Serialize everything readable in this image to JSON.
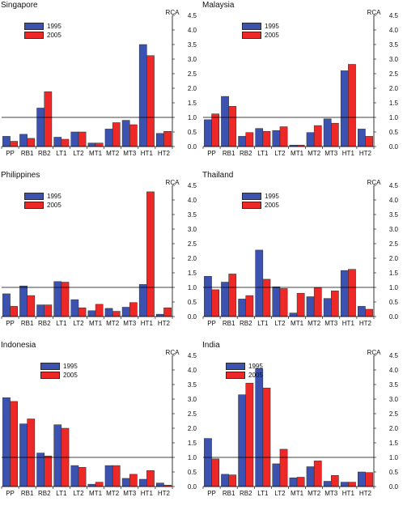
{
  "colors": {
    "s1995": "#3c52b0",
    "s2005": "#ee2727",
    "bar_edge": "#2a2a2a",
    "axis": "#000000"
  },
  "chart_data": [
    {
      "type": "bar",
      "title": "Singapore",
      "ylabel": "RCA",
      "ylim": [
        0,
        4.5
      ],
      "reference_line": 1.0,
      "y_ticks": [
        "0.0",
        "0.5",
        "1.0",
        "1.5",
        "2.0",
        "2.5",
        "3.0",
        "3.5",
        "4.0",
        "4.5"
      ],
      "categories": [
        "PP",
        "RB1",
        "RB2",
        "LT1",
        "LT2",
        "MT1",
        "MT2",
        "MT3",
        "HT1",
        "HT2"
      ],
      "legend_position": "upper-left",
      "series": [
        {
          "name": "1995",
          "values": [
            0.35,
            0.42,
            1.32,
            0.32,
            0.5,
            0.12,
            0.6,
            0.9,
            3.5,
            0.45
          ]
        },
        {
          "name": "2005",
          "values": [
            0.18,
            0.28,
            1.88,
            0.25,
            0.5,
            0.12,
            0.82,
            0.75,
            3.12,
            0.52
          ]
        }
      ]
    },
    {
      "type": "bar",
      "title": "Malaysia",
      "ylabel": "RCA",
      "ylim": [
        0,
        4.5
      ],
      "reference_line": 1.0,
      "y_ticks": [
        "0.0",
        "0.5",
        "1.0",
        "1.5",
        "2.0",
        "2.5",
        "3.0",
        "3.5",
        "4.0",
        "4.5"
      ],
      "categories": [
        "PP",
        "RB1",
        "RB2",
        "LT1",
        "LT2",
        "MT1",
        "MT2",
        "MT3",
        "HT1",
        "HT2"
      ],
      "legend_position": "upper-center",
      "series": [
        {
          "name": "1995",
          "values": [
            0.92,
            1.72,
            0.35,
            0.62,
            0.55,
            0.05,
            0.48,
            0.95,
            2.6,
            0.6
          ]
        },
        {
          "name": "2005",
          "values": [
            1.12,
            1.38,
            0.48,
            0.52,
            0.68,
            0.05,
            0.72,
            0.8,
            2.82,
            0.35
          ]
        }
      ]
    },
    {
      "type": "bar",
      "title": "Philippines",
      "ylabel": "RCA",
      "ylim": [
        0,
        4.5
      ],
      "reference_line": 1.0,
      "y_ticks": [
        "0.0",
        "0.5",
        "1.0",
        "1.5",
        "2.0",
        "2.5",
        "3.0",
        "3.5",
        "4.0",
        "4.5"
      ],
      "categories": [
        "PP",
        "RB1",
        "RB2",
        "LT1",
        "LT2",
        "MT1",
        "MT2",
        "MT3",
        "HT1",
        "HT2"
      ],
      "legend_position": "upper-left",
      "series": [
        {
          "name": "1995",
          "values": [
            0.78,
            1.05,
            0.4,
            1.2,
            0.58,
            0.2,
            0.28,
            0.32,
            1.1,
            0.08
          ]
        },
        {
          "name": "2005",
          "values": [
            0.35,
            0.72,
            0.4,
            1.18,
            0.3,
            0.42,
            0.18,
            0.48,
            4.28,
            0.3
          ]
        }
      ]
    },
    {
      "type": "bar",
      "title": "Thailand",
      "ylabel": "RCA",
      "ylim": [
        0,
        4.5
      ],
      "reference_line": 1.0,
      "y_ticks": [
        "0.0",
        "0.5",
        "1.0",
        "1.5",
        "2.0",
        "2.5",
        "3.0",
        "3.5",
        "4.0",
        "4.5"
      ],
      "categories": [
        "PP",
        "RB1",
        "RB2",
        "LT1",
        "LT2",
        "MT1",
        "MT2",
        "MT3",
        "HT1",
        "HT2"
      ],
      "legend_position": "upper-center",
      "series": [
        {
          "name": "1995",
          "values": [
            1.38,
            1.18,
            0.6,
            2.28,
            1.02,
            0.12,
            0.68,
            0.62,
            1.58,
            0.35
          ]
        },
        {
          "name": "2005",
          "values": [
            0.92,
            1.46,
            0.72,
            1.28,
            0.96,
            0.8,
            0.98,
            0.88,
            1.62,
            0.25
          ]
        }
      ]
    },
    {
      "type": "bar",
      "title": "Indonesia",
      "ylabel": "RCA",
      "ylim": [
        0,
        4.5
      ],
      "reference_line": 1.0,
      "y_ticks": [
        "0.0",
        "0.5",
        "1.0",
        "1.5",
        "2.0",
        "2.5",
        "3.0",
        "3.5",
        "4.0",
        "4.5"
      ],
      "categories": [
        "PP",
        "RB1",
        "RB2",
        "LT1",
        "LT2",
        "MT1",
        "MT2",
        "MT3",
        "HT1",
        "HT2"
      ],
      "legend_position": "upper-center",
      "series": [
        {
          "name": "1995",
          "values": [
            3.05,
            2.15,
            1.15,
            2.12,
            0.72,
            0.08,
            0.72,
            0.28,
            0.25,
            0.12
          ]
        },
        {
          "name": "2005",
          "values": [
            2.92,
            2.32,
            1.05,
            2.0,
            0.66,
            0.15,
            0.72,
            0.42,
            0.55,
            0.05
          ]
        }
      ]
    },
    {
      "type": "bar",
      "title": "India",
      "ylabel": "RCA",
      "ylim": [
        0,
        4.5
      ],
      "reference_line": 1.0,
      "y_ticks": [
        "0.0",
        "0.5",
        "1.0",
        "1.5",
        "2.0",
        "2.5",
        "3.0",
        "3.5",
        "4.0",
        "4.5"
      ],
      "categories": [
        "PP",
        "RB1",
        "RB2",
        "LT1",
        "LT2",
        "MT1",
        "MT2",
        "MT3",
        "HT1",
        "HT2"
      ],
      "legend_position": "upper-left",
      "series": [
        {
          "name": "1995",
          "values": [
            1.65,
            0.42,
            3.15,
            4.05,
            0.78,
            0.3,
            0.68,
            0.18,
            0.15,
            0.5
          ]
        },
        {
          "name": "2005",
          "values": [
            0.95,
            0.4,
            3.55,
            3.38,
            1.28,
            0.32,
            0.88,
            0.38,
            0.15,
            0.48
          ]
        }
      ]
    }
  ]
}
